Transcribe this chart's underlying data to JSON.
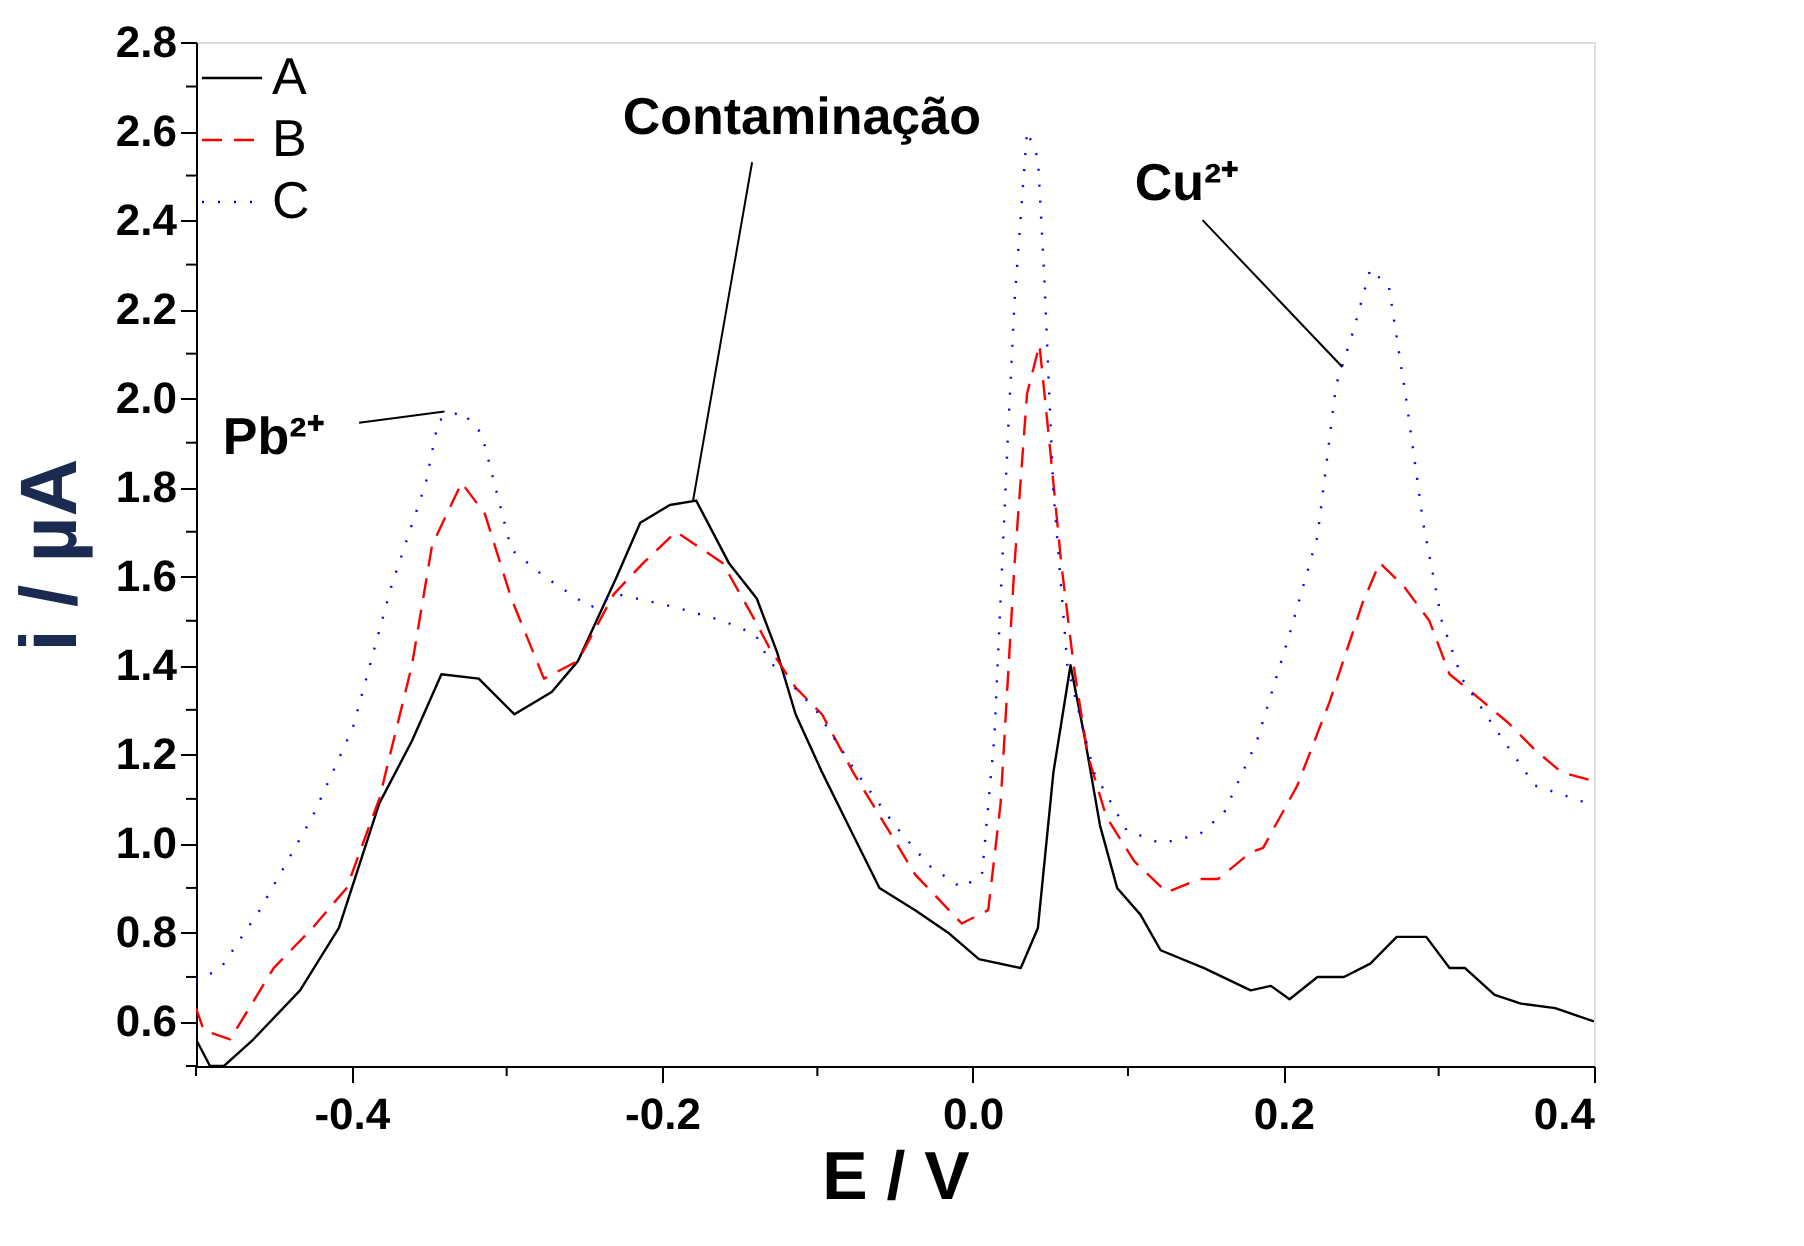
{
  "chart_data": {
    "type": "line",
    "xlabel": "E / V",
    "ylabel": "i / µA",
    "xlim": [
      -0.5,
      0.4
    ],
    "ylim": [
      0.5,
      2.8
    ],
    "xticks": [
      {
        "value": -0.5,
        "label": null
      },
      {
        "value": -0.4,
        "label": "-0.4"
      },
      {
        "value": -0.3,
        "label": null
      },
      {
        "value": -0.2,
        "label": "-0.2"
      },
      {
        "value": -0.1,
        "label": null
      },
      {
        "value": 0.0,
        "label": "0.0"
      },
      {
        "value": 0.1,
        "label": null
      },
      {
        "value": 0.2,
        "label": "0.2"
      },
      {
        "value": 0.3,
        "label": null
      },
      {
        "value": 0.4,
        "label": "0.4"
      }
    ],
    "yticks": [
      {
        "value": 0.5,
        "label": null
      },
      {
        "value": 0.6,
        "label": "0.6"
      },
      {
        "value": 0.7,
        "label": null
      },
      {
        "value": 0.8,
        "label": "0.8"
      },
      {
        "value": 0.9,
        "label": null
      },
      {
        "value": 1.0,
        "label": "1.0"
      },
      {
        "value": 1.1,
        "label": null
      },
      {
        "value": 1.2,
        "label": "1.2"
      },
      {
        "value": 1.3,
        "label": null
      },
      {
        "value": 1.4,
        "label": "1.4"
      },
      {
        "value": 1.5,
        "label": null
      },
      {
        "value": 1.6,
        "label": "1.6"
      },
      {
        "value": 1.7,
        "label": null
      },
      {
        "value": 1.8,
        "label": "1.8"
      },
      {
        "value": 1.9,
        "label": null
      },
      {
        "value": 2.0,
        "label": "2.0"
      },
      {
        "value": 2.1,
        "label": null
      },
      {
        "value": 2.2,
        "label": "2.2"
      },
      {
        "value": 2.3,
        "label": null
      },
      {
        "value": 2.4,
        "label": "2.4"
      },
      {
        "value": 2.5,
        "label": null
      },
      {
        "value": 2.6,
        "label": "2.6"
      },
      {
        "value": 2.7,
        "label": null
      },
      {
        "value": 2.8,
        "label": "2.8"
      }
    ],
    "grid": false,
    "legend": "top left",
    "marker": "none",
    "series": [
      {
        "name": "A",
        "color": "#000000",
        "line_style": "solid",
        "x": [
          -0.5,
          -0.491,
          -0.482,
          -0.463,
          -0.433,
          -0.408,
          -0.382,
          -0.361,
          -0.342,
          -0.318,
          -0.295,
          -0.271,
          -0.254,
          -0.229,
          -0.214,
          -0.195,
          -0.178,
          -0.157,
          -0.139,
          -0.126,
          -0.114,
          -0.097,
          -0.08,
          -0.06,
          -0.037,
          -0.016,
          0.004,
          0.031,
          0.042,
          0.052,
          0.063,
          0.072,
          0.082,
          0.093,
          0.108,
          0.121,
          0.149,
          0.179,
          0.192,
          0.204,
          0.222,
          0.239,
          0.256,
          0.273,
          0.292,
          0.307,
          0.317,
          0.336,
          0.353,
          0.375,
          0.4
        ],
        "values": [
          0.56,
          0.5,
          0.5,
          0.56,
          0.67,
          0.81,
          1.09,
          1.23,
          1.38,
          1.37,
          1.29,
          1.34,
          1.41,
          1.6,
          1.72,
          1.76,
          1.77,
          1.63,
          1.55,
          1.43,
          1.29,
          1.16,
          1.04,
          0.9,
          0.85,
          0.8,
          0.74,
          0.72,
          0.81,
          1.16,
          1.4,
          1.24,
          1.04,
          0.9,
          0.84,
          0.76,
          0.72,
          0.67,
          0.68,
          0.65,
          0.7,
          0.7,
          0.73,
          0.79,
          0.79,
          0.72,
          0.72,
          0.66,
          0.64,
          0.63,
          0.6
        ]
      },
      {
        "name": "B",
        "color": "#ff0000",
        "line_style": "dashed",
        "x": [
          -0.5,
          -0.495,
          -0.478,
          -0.45,
          -0.425,
          -0.403,
          -0.382,
          -0.361,
          -0.348,
          -0.329,
          -0.314,
          -0.297,
          -0.276,
          -0.254,
          -0.231,
          -0.212,
          -0.191,
          -0.161,
          -0.14,
          -0.131,
          -0.114,
          -0.097,
          -0.077,
          -0.056,
          -0.037,
          -0.007,
          0.01,
          0.018,
          0.027,
          0.035,
          0.043,
          0.05,
          0.057,
          0.065,
          0.074,
          0.086,
          0.104,
          0.125,
          0.146,
          0.158,
          0.179,
          0.187,
          0.209,
          0.23,
          0.251,
          0.262,
          0.277,
          0.294,
          0.307,
          0.328,
          0.345,
          0.362,
          0.379,
          0.4
        ],
        "values": [
          0.63,
          0.58,
          0.56,
          0.72,
          0.81,
          0.9,
          1.1,
          1.4,
          1.67,
          1.81,
          1.74,
          1.55,
          1.37,
          1.41,
          1.56,
          1.63,
          1.7,
          1.63,
          1.5,
          1.44,
          1.35,
          1.29,
          1.16,
          1.04,
          0.93,
          0.82,
          0.85,
          1.09,
          1.63,
          2.01,
          2.12,
          1.88,
          1.63,
          1.4,
          1.2,
          1.06,
          0.96,
          0.89,
          0.92,
          0.92,
          0.98,
          0.99,
          1.13,
          1.32,
          1.54,
          1.63,
          1.58,
          1.5,
          1.38,
          1.32,
          1.27,
          1.21,
          1.16,
          1.14
        ]
      },
      {
        "name": "C",
        "color": "#0000ff",
        "line_style": "dotted",
        "x": [
          -0.5,
          -0.484,
          -0.459,
          -0.425,
          -0.399,
          -0.374,
          -0.352,
          -0.344,
          -0.329,
          -0.316,
          -0.297,
          -0.276,
          -0.246,
          -0.229,
          -0.191,
          -0.161,
          -0.14,
          -0.131,
          -0.101,
          -0.075,
          -0.05,
          -0.028,
          -0.007,
          0.006,
          0.014,
          0.023,
          0.027,
          0.035,
          0.042,
          0.046,
          0.052,
          0.061,
          0.078,
          0.099,
          0.121,
          0.146,
          0.162,
          0.183,
          0.204,
          0.222,
          0.234,
          0.245,
          0.256,
          0.268,
          0.279,
          0.29,
          0.302,
          0.315,
          0.336,
          0.362,
          0.396
        ],
        "values": [
          0.69,
          0.72,
          0.85,
          1.06,
          1.26,
          1.58,
          1.81,
          1.95,
          1.97,
          1.92,
          1.66,
          1.6,
          1.53,
          1.56,
          1.53,
          1.5,
          1.47,
          1.41,
          1.3,
          1.16,
          1.04,
          0.95,
          0.9,
          0.93,
          1.24,
          1.94,
          2.22,
          2.6,
          2.54,
          2.28,
          1.79,
          1.4,
          1.16,
          1.03,
          1.0,
          1.02,
          1.07,
          1.23,
          1.47,
          1.69,
          2.03,
          2.15,
          2.29,
          2.25,
          2.0,
          1.72,
          1.5,
          1.37,
          1.26,
          1.13,
          1.09
        ]
      }
    ],
    "annotations": [
      {
        "text": "Pb²⁺",
        "x": -0.34,
        "y": 1.97
      },
      {
        "text": "Contaminação",
        "x": -0.18,
        "y": 1.77
      },
      {
        "text": "Cu²⁺",
        "x": 0.238,
        "y": 2.07
      }
    ]
  }
}
